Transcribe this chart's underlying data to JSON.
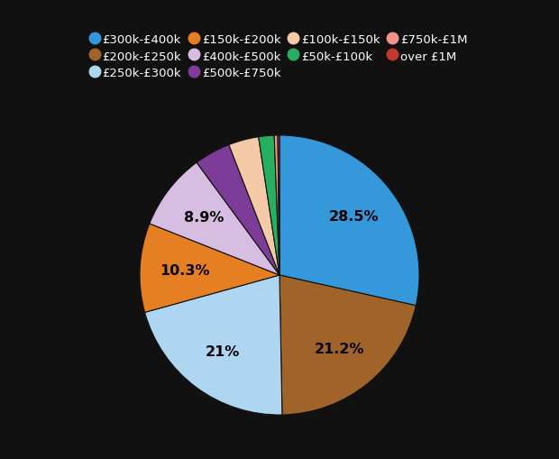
{
  "slices": [
    {
      "label": "£300k-£400k",
      "value": 28.5,
      "color": "#3498db"
    },
    {
      "label": "£200k-£250k",
      "value": 21.2,
      "color": "#a0632a"
    },
    {
      "label": "£250k-£300k",
      "value": 21.0,
      "color": "#aed6f1"
    },
    {
      "label": "£150k-£200k",
      "value": 10.3,
      "color": "#e67e22"
    },
    {
      "label": "£400k-£500k",
      "value": 8.9,
      "color": "#d7bde2"
    },
    {
      "label": "£500k-£750k",
      "value": 4.2,
      "color": "#7d3c98"
    },
    {
      "label": "£100k-£150k",
      "value": 3.5,
      "color": "#f5cba7"
    },
    {
      "label": "£50k-£100k",
      "value": 1.8,
      "color": "#27ae60"
    },
    {
      "label": "£750k-£1M",
      "value": 0.4,
      "color": "#f1948a"
    },
    {
      "label": "over £1M",
      "value": 0.2,
      "color": "#c0392b"
    }
  ],
  "legend_order": [
    0,
    1,
    2,
    3,
    4,
    5,
    6,
    7,
    8,
    9
  ],
  "background_color": "#111111",
  "text_color": "#ffffff",
  "label_color": "#000000",
  "pct_threshold": 8.0,
  "figsize": [
    6.2,
    5.1
  ],
  "dpi": 100
}
